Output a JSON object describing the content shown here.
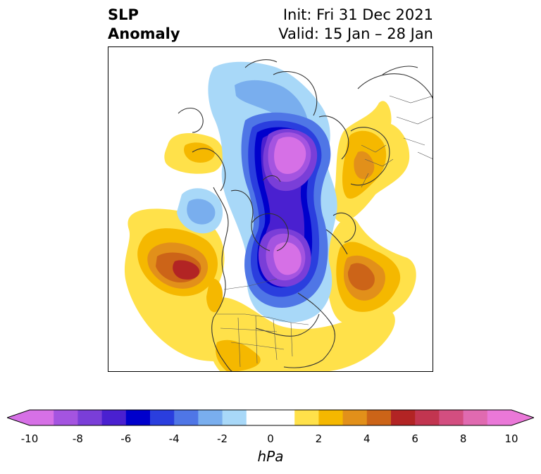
{
  "title": {
    "left_line1": "SLP",
    "left_line2": "Anomaly",
    "right_line1": "Init: Fri 31 Dec 2021",
    "right_line2": "Valid: 15 Jan – 28 Jan"
  },
  "colorbar": {
    "unit": "hPa",
    "min": -10,
    "max": 10,
    "extend": "both",
    "tick_labels": [
      "-10",
      "-8",
      "-6",
      "-4",
      "-2",
      "0",
      "2",
      "4",
      "6",
      "8",
      "10"
    ],
    "ticks": [
      -10,
      -8,
      -6,
      -4,
      -2,
      0,
      2,
      4,
      6,
      8,
      10
    ],
    "bin_colors": [
      "#d670e6",
      "#a454e0",
      "#7a3ed8",
      "#4a20d0",
      "#0000cc",
      "#2a3ede",
      "#4f76e6",
      "#79aeee",
      "#a8d8f8",
      "#ffffff",
      "#ffffff",
      "#ffe14a",
      "#f5b800",
      "#e2901a",
      "#cc6418",
      "#b22424",
      "#c23550",
      "#d34e80",
      "#e06ab0",
      "#ea78d8"
    ],
    "under_color": "#d670e6",
    "over_color": "#ea78d8"
  }
}
